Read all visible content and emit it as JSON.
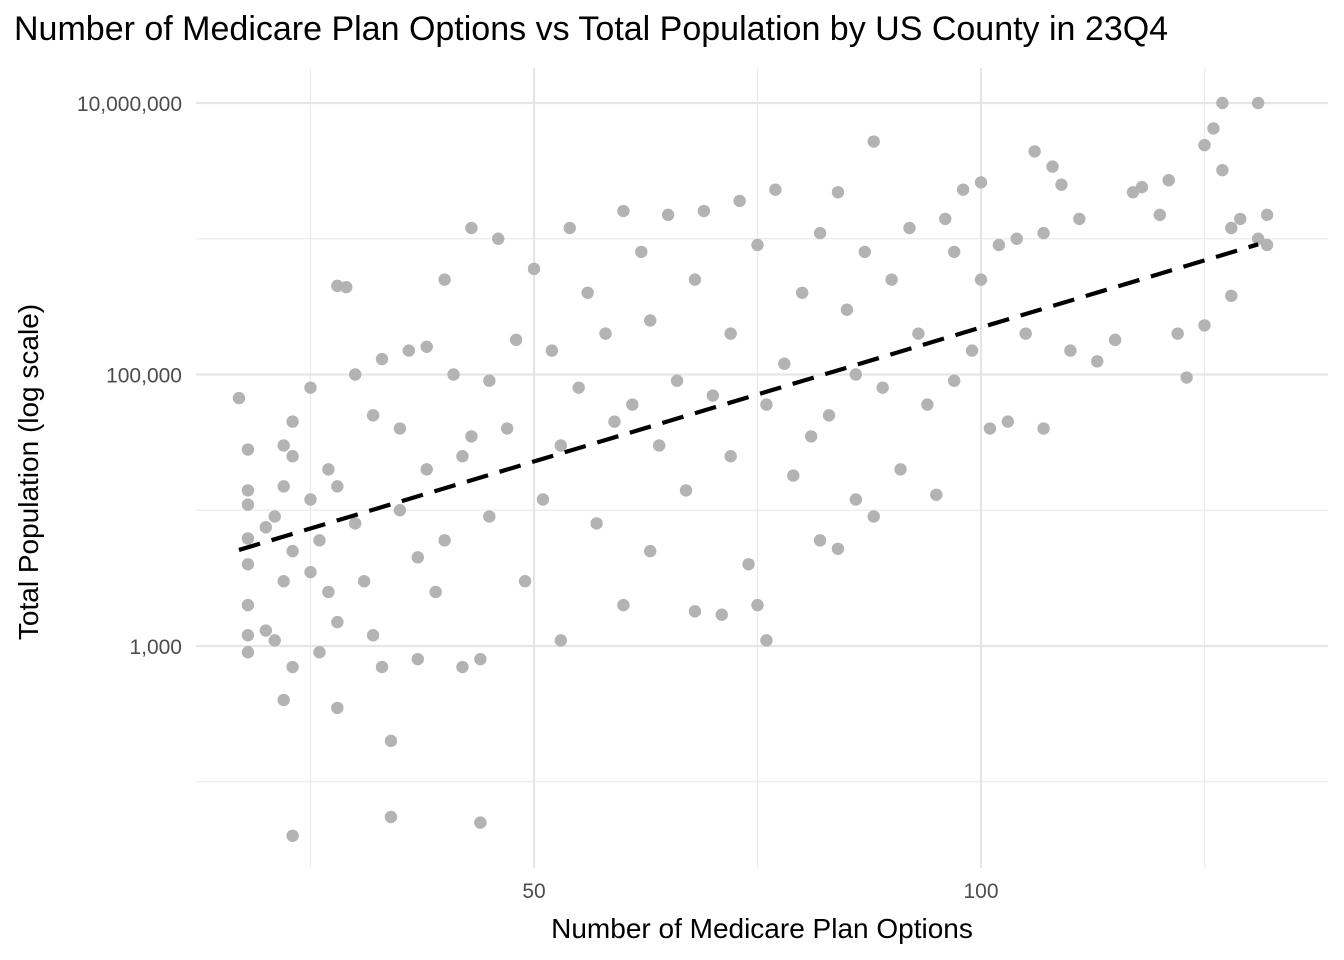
{
  "chart_data": {
    "type": "scatter",
    "title": "Number of Medicare Plan Options vs Total Population by US County in 23Q4",
    "xlabel": "Number of Medicare Plan Options",
    "ylabel": "Total Population (log scale)",
    "x_scale": "linear",
    "y_scale": "log10",
    "xlim": [
      16,
      133
    ],
    "ylim": [
      50,
      13000000
    ],
    "x_ticks": [
      50,
      100
    ],
    "x_tick_labels": [
      "50",
      "100"
    ],
    "y_ticks": [
      1000,
      100000,
      10000000
    ],
    "y_tick_labels": [
      "1,000",
      "100,000",
      "10,000,000"
    ],
    "grid": true,
    "legend": "none",
    "point_color": "#b3b3b3",
    "trend_line": {
      "style": "dashed",
      "color": "#000000",
      "x": [
        17,
        131
      ],
      "y": [
        5100,
        910000
      ]
    },
    "series": [
      {
        "points": [
          [
            17,
            67000
          ],
          [
            18,
            28000
          ],
          [
            18,
            14000
          ],
          [
            18,
            11000
          ],
          [
            18,
            6200
          ],
          [
            18,
            4000
          ],
          [
            18,
            2000
          ],
          [
            18,
            1200
          ],
          [
            18,
            900
          ],
          [
            20,
            7500
          ],
          [
            20,
            1300
          ],
          [
            21,
            9000
          ],
          [
            21,
            1100
          ],
          [
            22,
            400
          ],
          [
            22,
            3000
          ],
          [
            22,
            15000
          ],
          [
            22,
            30000
          ],
          [
            23,
            40
          ],
          [
            23,
            700
          ],
          [
            23,
            5000
          ],
          [
            23,
            25000
          ],
          [
            23,
            45000
          ],
          [
            25,
            12000
          ],
          [
            25,
            3500
          ],
          [
            25,
            80000
          ],
          [
            26,
            6000
          ],
          [
            26,
            900
          ],
          [
            27,
            20000
          ],
          [
            27,
            2500
          ],
          [
            28,
            15000
          ],
          [
            28,
            1500
          ],
          [
            28,
            450000
          ],
          [
            28,
            350
          ],
          [
            29,
            440000
          ],
          [
            30,
            8000
          ],
          [
            30,
            100000
          ],
          [
            31,
            3000
          ],
          [
            32,
            50000
          ],
          [
            32,
            1200
          ],
          [
            33,
            130000
          ],
          [
            33,
            700
          ],
          [
            34,
            200
          ],
          [
            34,
            55
          ],
          [
            35,
            10000
          ],
          [
            35,
            40000
          ],
          [
            36,
            150000
          ],
          [
            37,
            4500
          ],
          [
            37,
            800
          ],
          [
            38,
            20000
          ],
          [
            38,
            160000
          ],
          [
            39,
            2500
          ],
          [
            40,
            500000
          ],
          [
            40,
            6000
          ],
          [
            41,
            100000
          ],
          [
            42,
            25000
          ],
          [
            42,
            700
          ],
          [
            43,
            1200000
          ],
          [
            43,
            35000
          ],
          [
            44,
            50
          ],
          [
            44,
            800
          ],
          [
            45,
            90000
          ],
          [
            45,
            9000
          ],
          [
            46,
            1000000
          ],
          [
            47,
            40000
          ],
          [
            48,
            180000
          ],
          [
            49,
            3000
          ],
          [
            50,
            600000
          ],
          [
            51,
            12000
          ],
          [
            52,
            150000
          ],
          [
            53,
            1100
          ],
          [
            53,
            30000
          ],
          [
            54,
            1200000
          ],
          [
            55,
            80000
          ],
          [
            56,
            400000
          ],
          [
            57,
            8000
          ],
          [
            58,
            200000
          ],
          [
            59,
            45000
          ],
          [
            60,
            2000
          ],
          [
            60,
            1600000
          ],
          [
            61,
            60000
          ],
          [
            62,
            800000
          ],
          [
            63,
            5000
          ],
          [
            63,
            250000
          ],
          [
            64,
            30000
          ],
          [
            65,
            1500000
          ],
          [
            66,
            90000
          ],
          [
            67,
            14000
          ],
          [
            68,
            1800
          ],
          [
            68,
            500000
          ],
          [
            69,
            1600000
          ],
          [
            70,
            70000
          ],
          [
            71,
            1700
          ],
          [
            72,
            200000
          ],
          [
            72,
            25000
          ],
          [
            73,
            1900000
          ],
          [
            74,
            4000
          ],
          [
            75,
            900000
          ],
          [
            75,
            2000
          ],
          [
            76,
            60000
          ],
          [
            76,
            1100
          ],
          [
            77,
            2300000
          ],
          [
            78,
            120000
          ],
          [
            79,
            18000
          ],
          [
            80,
            400000
          ],
          [
            81,
            35000
          ],
          [
            82,
            6000
          ],
          [
            82,
            1100000
          ],
          [
            83,
            50000
          ],
          [
            84,
            2200000
          ],
          [
            84,
            5200
          ],
          [
            85,
            300000
          ],
          [
            86,
            100000
          ],
          [
            86,
            12000
          ],
          [
            87,
            800000
          ],
          [
            88,
            9000
          ],
          [
            88,
            5200000
          ],
          [
            89,
            80000
          ],
          [
            90,
            500000
          ],
          [
            91,
            20000
          ],
          [
            92,
            1200000
          ],
          [
            93,
            200000
          ],
          [
            94,
            60000
          ],
          [
            95,
            13000
          ],
          [
            96,
            1400000
          ],
          [
            97,
            800000
          ],
          [
            97,
            90000
          ],
          [
            98,
            2300000
          ],
          [
            99,
            150000
          ],
          [
            100,
            2600000
          ],
          [
            100,
            500000
          ],
          [
            101,
            40000
          ],
          [
            102,
            900000
          ],
          [
            103,
            45000
          ],
          [
            104,
            1000000
          ],
          [
            105,
            200000
          ],
          [
            106,
            4400000
          ],
          [
            107,
            1100000
          ],
          [
            107,
            40000
          ],
          [
            108,
            3400000
          ],
          [
            109,
            2500000
          ],
          [
            110,
            150000
          ],
          [
            111,
            1400000
          ],
          [
            113,
            125000
          ],
          [
            115,
            180000
          ],
          [
            117,
            2200000
          ],
          [
            118,
            2400000
          ],
          [
            120,
            1500000
          ],
          [
            121,
            2700000
          ],
          [
            122,
            200000
          ],
          [
            123,
            95000
          ],
          [
            125,
            4900000
          ],
          [
            125,
            230000
          ],
          [
            126,
            6500000
          ],
          [
            127,
            10000000
          ],
          [
            127,
            3200000
          ],
          [
            128,
            1200000
          ],
          [
            128,
            380000
          ],
          [
            129,
            1400000
          ],
          [
            131,
            10000000
          ],
          [
            131,
            1000000
          ],
          [
            132,
            1500000
          ],
          [
            132,
            900000
          ]
        ]
      }
    ]
  }
}
